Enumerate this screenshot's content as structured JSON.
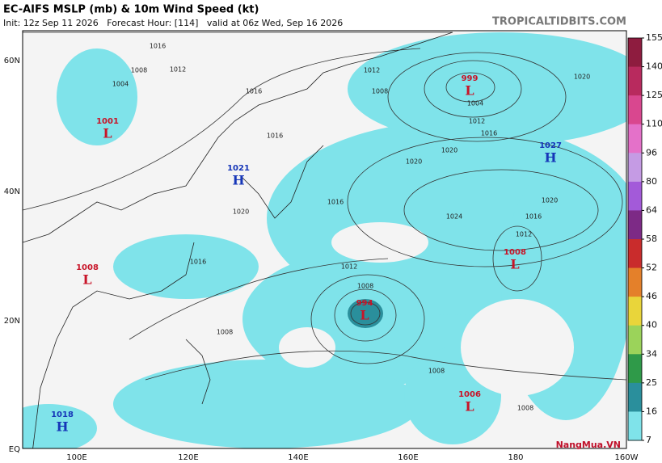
{
  "header": {
    "title": "EC-AIFS MSLP (mb) & 10m Wind Speed (kt)",
    "subtitle": "Init: 12z Sep 11 2026   Forecast Hour: [114]   valid at 06z Wed, Sep 16 2026",
    "site": "TROPICALTIDBITS.COM"
  },
  "map": {
    "lat_labels": [
      "60N",
      "40N",
      "20N",
      "EQ"
    ],
    "lon_labels": [
      "100E",
      "120E",
      "140E",
      "160E",
      "180",
      "160W"
    ],
    "centers": [
      {
        "pressure": "999",
        "symbol": "L"
      },
      {
        "pressure": "1001",
        "symbol": "L"
      },
      {
        "pressure": "1021",
        "symbol": "H"
      },
      {
        "pressure": "1027",
        "symbol": "H"
      },
      {
        "pressure": "1008",
        "symbol": "L"
      },
      {
        "pressure": "1008",
        "symbol": "L"
      },
      {
        "pressure": "994",
        "symbol": "L"
      },
      {
        "pressure": "1006",
        "symbol": "L"
      },
      {
        "pressure": "1018",
        "symbol": "H"
      }
    ],
    "contour_labels": [
      "1016",
      "1012",
      "1008",
      "1004",
      "1008",
      "1016",
      "1016",
      "1020",
      "1004",
      "1012",
      "1016",
      "1020",
      "1024",
      "1020",
      "1016",
      "1012",
      "1012",
      "1008",
      "1008",
      "1008",
      "1016",
      "1020",
      "1012",
      "1016",
      "1020",
      "1008"
    ]
  },
  "colorbar": {
    "ticks": [
      "155",
      "140",
      "125",
      "110",
      "96",
      "80",
      "64",
      "58",
      "52",
      "46",
      "40",
      "34",
      "25",
      "16",
      "7"
    ],
    "colors": [
      "#8e1c3f",
      "#b82a5e",
      "#d9478f",
      "#e471c9",
      "#c59be4",
      "#a35ad9",
      "#7d2a86",
      "#c92c2c",
      "#e4802a",
      "#e9d53a",
      "#9bd35a",
      "#2f9a49",
      "#2a8f9c",
      "#7fe3ea"
    ]
  },
  "watermark": "NangMua.VN"
}
